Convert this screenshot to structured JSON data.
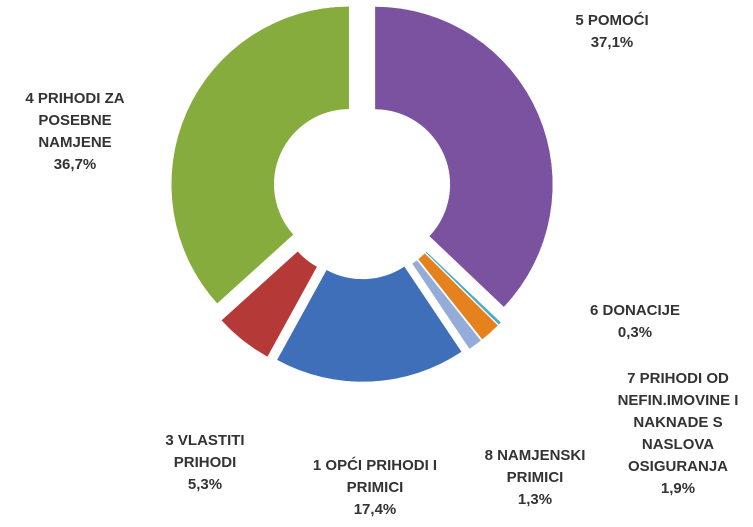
{
  "chart_data": {
    "type": "donut",
    "categories": [
      "5 POMOĆI",
      "6 DONACIJE",
      "7 PRIHODI OD NEFIN.IMOVINE I NAKNADE S NASLOVA OSIGURANJA",
      "8 NAMJENSKI PRIMICI",
      "1 OPĆI PRIHODI I PRIMICI",
      "3 VLASTITI PRIHODI",
      "4 PRIHODI ZA POSEBNE NAMJENE"
    ],
    "values": [
      37.1,
      0.3,
      1.9,
      1.3,
      17.4,
      5.3,
      36.7
    ],
    "value_labels": [
      "37,1%",
      "0,3%",
      "1,9%",
      "1,3%",
      "17,4%",
      "5,3%",
      "36,7%"
    ],
    "colors": [
      "#7b52a0",
      "#4bacc6",
      "#e5821e",
      "#94acd8",
      "#3e6fb8",
      "#b53a37",
      "#86ac3e"
    ]
  }
}
